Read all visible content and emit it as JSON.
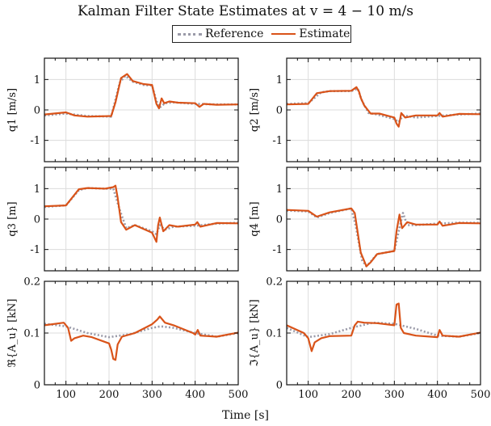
{
  "figure": {
    "title": "Kalman Filter State Estimates at v = 4 − 10 m/s",
    "xlabel": "Time [s]",
    "legend": [
      {
        "name": "Reference",
        "color": "#9a9aa8",
        "style": "dotted"
      },
      {
        "name": "Estimate",
        "color": "#d95319",
        "style": "solid"
      }
    ]
  },
  "chart_data": [
    {
      "type": "line",
      "ylabel": "q1 [m/s]",
      "xlim": [
        50,
        500
      ],
      "ylim": [
        -1.7,
        1.7
      ],
      "xticks": [
        "100",
        "200",
        "300",
        "400",
        "500"
      ],
      "yticks": [
        "1",
        "0",
        "-1"
      ],
      "ytick_values": [
        1,
        0,
        -1
      ],
      "grid": true,
      "show_xticklabels": false,
      "series": [
        {
          "name": "Reference",
          "x": [
            50,
            100,
            150,
            205,
            225,
            238,
            255,
            280,
            300,
            310,
            318,
            330,
            350,
            400,
            450,
            500
          ],
          "y": [
            -0.18,
            -0.12,
            -0.2,
            -0.22,
            0.9,
            1.12,
            0.93,
            0.82,
            0.8,
            0.3,
            0.08,
            0.22,
            0.25,
            0.2,
            0.18,
            0.18
          ]
        },
        {
          "name": "Estimate",
          "x": [
            50,
            100,
            120,
            150,
            205,
            215,
            228,
            242,
            255,
            280,
            300,
            310,
            316,
            322,
            328,
            340,
            360,
            400,
            410,
            420,
            450,
            500
          ],
          "y": [
            -0.15,
            -0.08,
            -0.18,
            -0.22,
            -0.2,
            0.25,
            1.05,
            1.18,
            0.95,
            0.85,
            0.82,
            0.2,
            0.05,
            0.38,
            0.22,
            0.28,
            0.24,
            0.22,
            0.1,
            0.2,
            0.17,
            0.18
          ]
        }
      ]
    },
    {
      "type": "line",
      "ylabel": "q2 [m/s]",
      "xlim": [
        50,
        500
      ],
      "ylim": [
        -1.7,
        1.7
      ],
      "xticks": [
        "100",
        "200",
        "300",
        "400",
        "500"
      ],
      "yticks": [
        "1",
        "0",
        "-1"
      ],
      "ytick_values": [
        1,
        0,
        -1
      ],
      "grid": true,
      "show_xticklabels": false,
      "series": [
        {
          "name": "Reference",
          "x": [
            50,
            100,
            130,
            150,
            200,
            215,
            225,
            240,
            260,
            300,
            310,
            320,
            350,
            400,
            450,
            500
          ],
          "y": [
            0.2,
            0.22,
            0.58,
            0.62,
            0.62,
            0.7,
            0.3,
            -0.1,
            -0.15,
            -0.3,
            -0.4,
            -0.18,
            -0.25,
            -0.2,
            -0.15,
            -0.12
          ]
        },
        {
          "name": "Estimate",
          "x": [
            50,
            100,
            120,
            150,
            200,
            212,
            218,
            222,
            230,
            245,
            265,
            300,
            305,
            310,
            316,
            325,
            350,
            400,
            405,
            412,
            450,
            500
          ],
          "y": [
            0.18,
            0.2,
            0.55,
            0.62,
            0.63,
            0.75,
            0.6,
            0.4,
            0.15,
            -0.12,
            -0.12,
            -0.25,
            -0.45,
            -0.55,
            -0.1,
            -0.25,
            -0.18,
            -0.18,
            -0.1,
            -0.22,
            -0.13,
            -0.14
          ]
        }
      ]
    },
    {
      "type": "line",
      "ylabel": "q3 [m]",
      "xlim": [
        50,
        500
      ],
      "ylim": [
        -1.7,
        1.7
      ],
      "xticks": [
        "100",
        "200",
        "300",
        "400",
        "500"
      ],
      "yticks": [
        "1",
        "0",
        "-1"
      ],
      "ytick_values": [
        1,
        0,
        -1
      ],
      "grid": true,
      "show_xticklabels": false,
      "series": [
        {
          "name": "Reference",
          "x": [
            50,
            100,
            130,
            150,
            190,
            210,
            225,
            240,
            260,
            300,
            310,
            318,
            330,
            350,
            400,
            450,
            500
          ],
          "y": [
            0.4,
            0.45,
            0.95,
            1.02,
            1.0,
            1.0,
            0.3,
            -0.3,
            -0.2,
            -0.4,
            -0.5,
            -0.2,
            -0.35,
            -0.25,
            -0.22,
            -0.15,
            -0.12
          ]
        },
        {
          "name": "Estimate",
          "x": [
            50,
            100,
            130,
            150,
            190,
            210,
            215,
            220,
            228,
            240,
            260,
            300,
            310,
            314,
            318,
            326,
            340,
            360,
            400,
            405,
            412,
            450,
            500
          ],
          "y": [
            0.42,
            0.45,
            0.98,
            1.02,
            1.0,
            1.05,
            1.1,
            0.7,
            -0.1,
            -0.35,
            -0.2,
            -0.45,
            -0.75,
            -0.2,
            0.05,
            -0.4,
            -0.2,
            -0.25,
            -0.18,
            -0.1,
            -0.25,
            -0.13,
            -0.14
          ]
        }
      ]
    },
    {
      "type": "line",
      "ylabel": "q4 [m]",
      "xlim": [
        50,
        500
      ],
      "ylim": [
        -1.7,
        1.7
      ],
      "xticks": [
        "100",
        "200",
        "300",
        "400",
        "500"
      ],
      "yticks": [
        "1",
        "0",
        "-1"
      ],
      "ytick_values": [
        1,
        0,
        -1
      ],
      "grid": true,
      "show_xticklabels": false,
      "series": [
        {
          "name": "Reference",
          "x": [
            50,
            100,
            120,
            150,
            200,
            210,
            225,
            235,
            245,
            260,
            300,
            310,
            320,
            330,
            350,
            400,
            450,
            500
          ],
          "y": [
            0.28,
            0.25,
            0.05,
            0.2,
            0.35,
            -0.2,
            -1.35,
            -1.55,
            -1.4,
            -1.15,
            -1.05,
            -0.4,
            0.2,
            -0.2,
            -0.2,
            -0.15,
            -0.12,
            -0.12
          ]
        },
        {
          "name": "Estimate",
          "x": [
            50,
            100,
            120,
            150,
            200,
            208,
            222,
            235,
            245,
            260,
            300,
            305,
            312,
            318,
            330,
            350,
            400,
            405,
            412,
            450,
            500
          ],
          "y": [
            0.3,
            0.27,
            0.08,
            0.22,
            0.35,
            0.2,
            -1.1,
            -1.55,
            -1.42,
            -1.15,
            -1.05,
            -0.4,
            0.15,
            -0.3,
            -0.1,
            -0.18,
            -0.18,
            -0.08,
            -0.22,
            -0.13,
            -0.14
          ]
        }
      ]
    },
    {
      "type": "line",
      "ylabel": "ℜ{A_u} [kN]",
      "xlim": [
        50,
        500
      ],
      "ylim": [
        0,
        0.2
      ],
      "xticks": [
        "100",
        "200",
        "300",
        "400",
        "500"
      ],
      "yticks": [
        "0.2",
        "0.1",
        "0"
      ],
      "ytick_values": [
        0.2,
        0.1,
        0
      ],
      "grid": true,
      "show_xticklabels": true,
      "series": [
        {
          "name": "Reference",
          "x": [
            50,
            100,
            150,
            200,
            250,
            300,
            320,
            350,
            400,
            450,
            500
          ],
          "y": [
            0.118,
            0.113,
            0.1,
            0.092,
            0.098,
            0.11,
            0.113,
            0.11,
            0.1,
            0.093,
            0.1
          ]
        },
        {
          "name": "Estimate",
          "x": [
            50,
            95,
            105,
            112,
            120,
            140,
            160,
            200,
            205,
            210,
            215,
            220,
            230,
            260,
            300,
            312,
            318,
            330,
            350,
            395,
            400,
            406,
            412,
            450,
            500
          ],
          "y": [
            0.115,
            0.12,
            0.11,
            0.085,
            0.09,
            0.095,
            0.092,
            0.08,
            0.068,
            0.05,
            0.048,
            0.078,
            0.093,
            0.1,
            0.117,
            0.126,
            0.132,
            0.12,
            0.115,
            0.1,
            0.097,
            0.106,
            0.095,
            0.093,
            0.101
          ]
        }
      ]
    },
    {
      "type": "line",
      "ylabel": "ℑ{A_u} [kN]",
      "xlim": [
        50,
        500
      ],
      "ylim": [
        0,
        0.2
      ],
      "xticks": [
        "100",
        "200",
        "300",
        "400",
        "500"
      ],
      "yticks": [
        "0.2",
        "0.1",
        "0"
      ],
      "ytick_values": [
        0.2,
        0.1,
        0
      ],
      "grid": true,
      "show_xticklabels": true,
      "series": [
        {
          "name": "Reference",
          "x": [
            50,
            100,
            150,
            200,
            250,
            300,
            350,
            400,
            450,
            500
          ],
          "y": [
            0.11,
            0.092,
            0.098,
            0.11,
            0.12,
            0.118,
            0.108,
            0.095,
            0.093,
            0.1
          ]
        },
        {
          "name": "Estimate",
          "x": [
            50,
            90,
            100,
            108,
            115,
            130,
            150,
            200,
            208,
            215,
            230,
            260,
            300,
            305,
            310,
            315,
            322,
            350,
            400,
            405,
            412,
            450,
            500
          ],
          "y": [
            0.115,
            0.1,
            0.09,
            0.065,
            0.082,
            0.09,
            0.094,
            0.095,
            0.115,
            0.122,
            0.12,
            0.119,
            0.115,
            0.155,
            0.157,
            0.11,
            0.1,
            0.095,
            0.092,
            0.106,
            0.095,
            0.093,
            0.101
          ]
        }
      ]
    }
  ]
}
